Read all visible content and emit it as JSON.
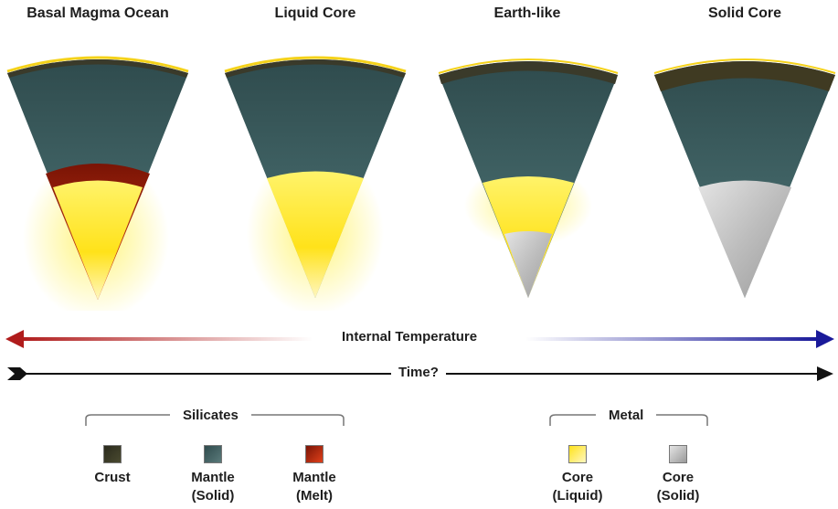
{
  "panels": [
    {
      "title": "Basal Magma Ocean"
    },
    {
      "title": "Liquid Core"
    },
    {
      "title": "Earth-like"
    },
    {
      "title": "Solid Core"
    }
  ],
  "arrows": {
    "temperature_label": "Internal Temperature",
    "time_label": "Time?"
  },
  "legend": {
    "silicates": {
      "title": "Silicates",
      "items": [
        {
          "line1": "Crust",
          "line2": ""
        },
        {
          "line1": "Mantle",
          "line2": "(Solid)"
        },
        {
          "line1": "Mantle",
          "line2": "(Melt)"
        }
      ]
    },
    "metal": {
      "title": "Metal",
      "items": [
        {
          "line1": "Core",
          "line2": "(Liquid)"
        },
        {
          "line1": "Core",
          "line2": "(Solid)"
        }
      ]
    }
  },
  "colors": {
    "crust": "#3a3a2a",
    "mantle_solid": "#3f5f60",
    "mantle_melt": "#c02000",
    "core_liquid": "#fff13a",
    "core_solid": "#c8c8c8",
    "hot_arrow": "#b01c1c",
    "cold_arrow": "#1a1a9a"
  }
}
